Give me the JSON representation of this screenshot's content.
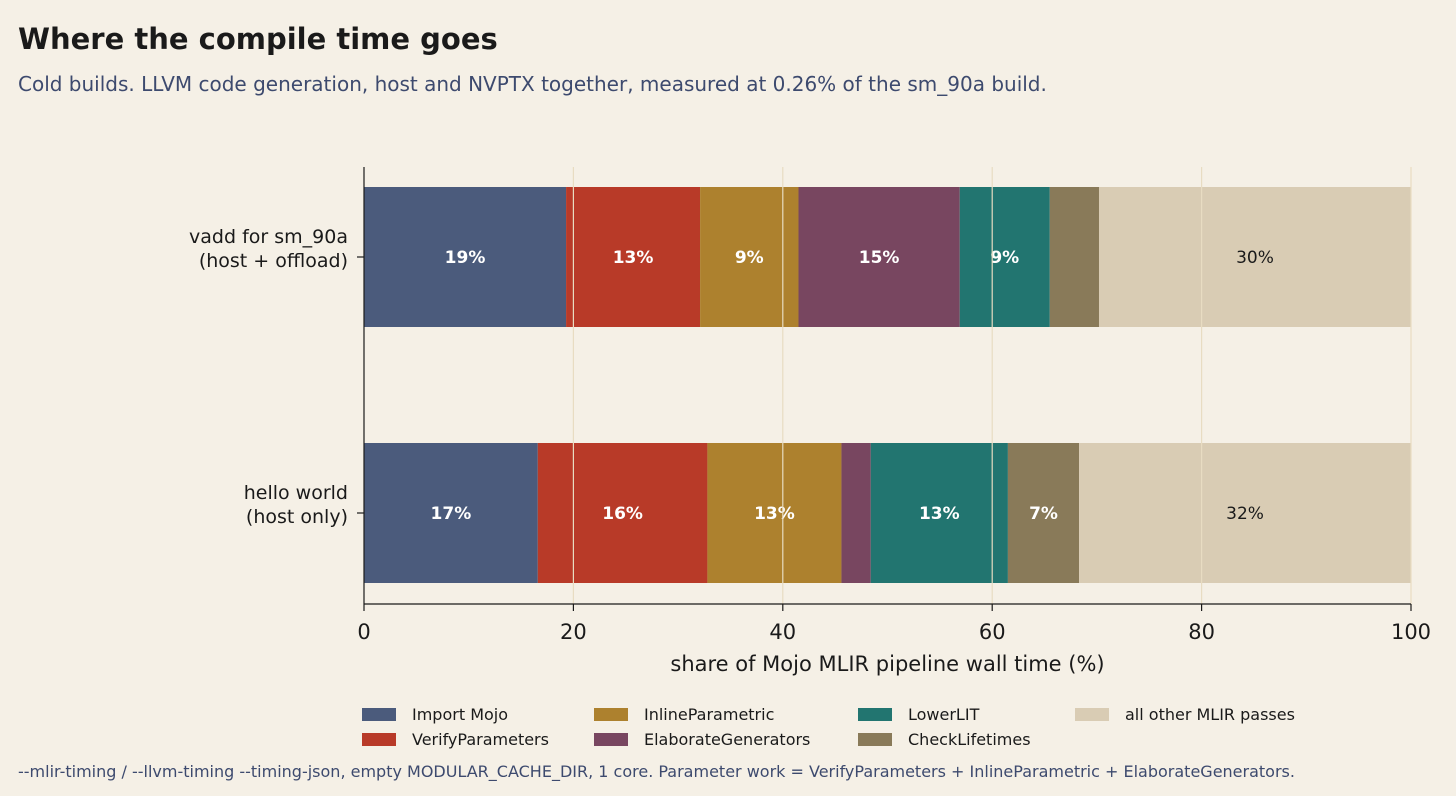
{
  "title": "Where the compile time goes",
  "subtitle": "Cold builds. LLVM code generation, host and NVPTX together, measured at 0.26% of the sm_90a build.",
  "footnote": "--mlir-timing / --llvm-timing --timing-json, empty MODULAR_CACHE_DIR, 1 core. Parameter work = VerifyParameters + InlineParametric + ElaborateGenerators.",
  "chart_data": {
    "type": "bar",
    "orientation": "horizontal",
    "stacked": true,
    "title": "Where the compile time goes",
    "xlabel": "share of Mojo MLIR pipeline wall time (%)",
    "ylabel": "",
    "xlim": [
      0,
      100
    ],
    "xticks": [
      0,
      20,
      40,
      60,
      80,
      100
    ],
    "grid": "vertical",
    "legend_position": "bottom",
    "categories": [
      [
        "vadd for sm_90a",
        "(host + offload)"
      ],
      [
        "hello world",
        "(host only)"
      ]
    ],
    "series": [
      {
        "name": "Import Mojo",
        "color": "#4b5b7c",
        "values": [
          19.3,
          16.6
        ],
        "labels": [
          "19%",
          "17%"
        ]
      },
      {
        "name": "VerifyParameters",
        "color": "#b83a28",
        "values": [
          12.8,
          16.2
        ],
        "labels": [
          "13%",
          "16%"
        ]
      },
      {
        "name": "InlineParametric",
        "color": "#ad812e",
        "values": [
          9.4,
          12.8
        ],
        "labels": [
          "9%",
          "13%"
        ]
      },
      {
        "name": "ElaborateGenerators",
        "color": "#784660",
        "values": [
          15.4,
          2.8
        ],
        "labels": [
          "15%",
          ""
        ]
      },
      {
        "name": "LowerLIT",
        "color": "#227570",
        "values": [
          8.6,
          13.1
        ],
        "labels": [
          "9%",
          "13%"
        ]
      },
      {
        "name": "CheckLifetimes",
        "color": "#897a59",
        "values": [
          4.7,
          6.8
        ],
        "labels": [
          "",
          "7%"
        ]
      },
      {
        "name": "all other MLIR passes",
        "color": "#d9ccb4",
        "values": [
          29.8,
          31.7
        ],
        "labels": [
          "30%",
          "32%"
        ]
      }
    ]
  }
}
